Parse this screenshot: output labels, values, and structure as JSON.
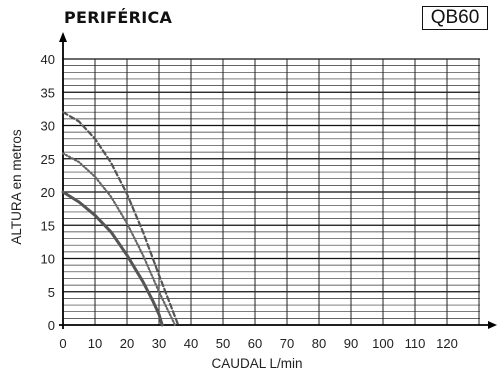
{
  "header": {
    "title": "PERIFÉRICA",
    "model": "QB60"
  },
  "chart_data": {
    "type": "line",
    "title": "PERIFÉRICA",
    "xlabel": "CAUDAL L/min",
    "ylabel": "ALTURA en metros",
    "xlim": [
      0,
      130
    ],
    "ylim": [
      0,
      40
    ],
    "xticks": [
      0,
      10,
      20,
      30,
      40,
      50,
      60,
      70,
      80,
      90,
      100,
      110,
      120
    ],
    "yticks": [
      0,
      5,
      10,
      15,
      20,
      25,
      30,
      35,
      40
    ],
    "grid": true,
    "series": [
      {
        "style": "solid",
        "color": "#555555",
        "x": [
          0,
          5,
          10,
          15,
          20,
          25,
          28,
          30,
          31
        ],
        "y": [
          20,
          18.5,
          16.5,
          14,
          10.5,
          6.5,
          3.7,
          1.6,
          0
        ]
      },
      {
        "style": "dotted",
        "color": "#666666",
        "x": [
          0,
          5,
          10,
          15,
          20,
          25,
          30,
          33,
          35
        ],
        "y": [
          25.8,
          24.5,
          22.3,
          19.3,
          15.3,
          10.5,
          5,
          2,
          0
        ]
      },
      {
        "style": "dashed",
        "color": "#555555",
        "x": [
          0,
          5,
          10,
          15,
          20,
          25,
          30,
          34,
          36
        ],
        "y": [
          32,
          30.6,
          28,
          24.4,
          19.7,
          14,
          7.5,
          2.5,
          0
        ]
      }
    ]
  }
}
